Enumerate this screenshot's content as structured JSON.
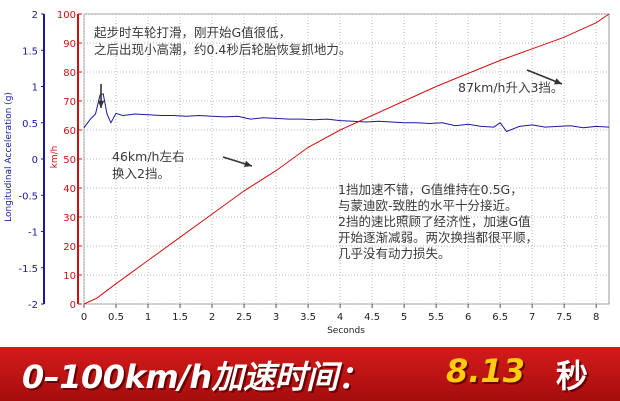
{
  "chart_data": {
    "type": "line",
    "xlabel": "Seconds",
    "ylabel_left": "Longitudinal Acceleration (g)",
    "ylabel_right": "km/h",
    "xlim": [
      0,
      8.2
    ],
    "ylim_left": [
      -2,
      2
    ],
    "ylim_right": [
      0,
      100
    ],
    "x_ticks": [
      "0",
      "0.5",
      "1",
      "1.5",
      "2",
      "2.5",
      "3",
      "3.5",
      "4",
      "4.5",
      "5",
      "5.5",
      "6",
      "6.5",
      "7",
      "7.5",
      "8"
    ],
    "y_left_ticks": [
      "2",
      "1.5",
      "1",
      "0.5",
      "0",
      "-0.5",
      "-1",
      "-1.5",
      "-2"
    ],
    "y_right_ticks": [
      "100",
      "90",
      "80",
      "70",
      "60",
      "50",
      "40",
      "30",
      "20",
      "10",
      "0"
    ],
    "grid": true,
    "series": [
      {
        "name": "",
        "axis": "left",
        "color": "#1a1aa0",
        "x": [
          0,
          0.1,
          0.18,
          0.25,
          0.3,
          0.36,
          0.42,
          0.5,
          0.6,
          0.8,
          1.0,
          1.2,
          1.4,
          1.6,
          1.8,
          2.0,
          2.2,
          2.4,
          2.6,
          2.8,
          3.0,
          3.2,
          3.4,
          3.6,
          3.8,
          4.0,
          4.2,
          4.4,
          4.6,
          4.8,
          5.0,
          5.2,
          5.4,
          5.6,
          5.8,
          6.0,
          6.2,
          6.4,
          6.5,
          6.6,
          6.8,
          7.0,
          7.2,
          7.4,
          7.6,
          7.8,
          8.0,
          8.2
        ],
        "y": [
          0.43,
          0.55,
          0.62,
          0.88,
          0.9,
          0.62,
          0.5,
          0.63,
          0.6,
          0.62,
          0.61,
          0.6,
          0.6,
          0.59,
          0.6,
          0.59,
          0.58,
          0.59,
          0.55,
          0.57,
          0.56,
          0.55,
          0.55,
          0.54,
          0.55,
          0.53,
          0.52,
          0.51,
          0.52,
          0.51,
          0.5,
          0.5,
          0.49,
          0.5,
          0.46,
          0.48,
          0.45,
          0.44,
          0.5,
          0.38,
          0.45,
          0.47,
          0.44,
          0.45,
          0.46,
          0.43,
          0.45,
          0.44
        ]
      },
      {
        "name": "",
        "axis": "right",
        "color": "#d01010",
        "x": [
          0,
          0.2,
          0.5,
          1.0,
          1.5,
          2.0,
          2.5,
          3.0,
          3.5,
          4.0,
          4.5,
          5.0,
          5.5,
          6.0,
          6.5,
          7.0,
          7.5,
          8.0,
          8.2
        ],
        "y": [
          0,
          2,
          7,
          15,
          23,
          31,
          39,
          46,
          54,
          60,
          65,
          70,
          75,
          79.5,
          84,
          88,
          92,
          97,
          100
        ]
      }
    ],
    "annotations": [
      {
        "lines": [
          "起步时车轮打滑，刚开始G值很低，",
          "之后出现小高潮，约0.4秒后轮胎恢复抓地力。"
        ]
      },
      {
        "lines": [
          "87km/h升入3挡。"
        ]
      },
      {
        "lines": [
          "46km/h左右",
          "换入2挡。"
        ]
      },
      {
        "lines": [
          "1挡加速不错，G值维持在0.5G，",
          "与蒙迪欧-致胜的水平十分接近。",
          "2挡的速比照顾了经济性，加速G值",
          "开始逐渐减弱。两次换挡都很平顺，",
          "几乎没有动力损失。"
        ]
      }
    ]
  },
  "banner": {
    "label": "0–100km/h加速时间：",
    "value": "8.13",
    "unit": "秒"
  }
}
